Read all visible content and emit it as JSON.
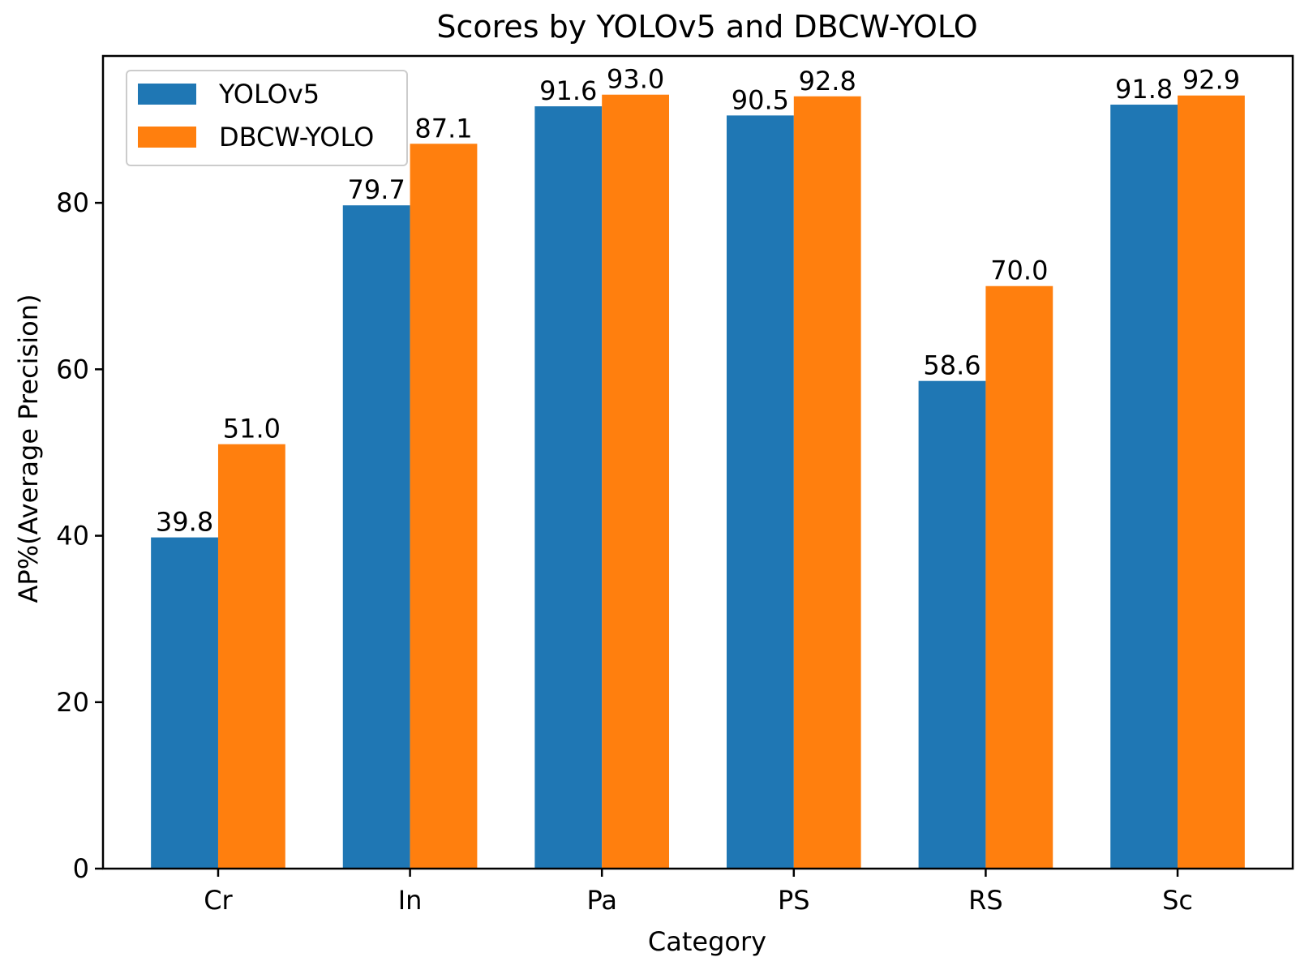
{
  "chart_data": {
    "type": "bar",
    "title": "Scores by YOLOv5 and DBCW-YOLO",
    "xlabel": "Category",
    "ylabel": "AP%(Average Precision)",
    "categories": [
      "Cr",
      "In",
      "Pa",
      "PS",
      "RS",
      "Sc"
    ],
    "series": [
      {
        "name": "YOLOv5",
        "color": "#1f77b4",
        "values": [
          39.8,
          79.7,
          91.6,
          90.5,
          58.6,
          91.8
        ],
        "labels": [
          "39.8",
          "79.7",
          "91.6",
          "90.5",
          "58.6",
          "91.8"
        ]
      },
      {
        "name": "DBCW-YOLO",
        "color": "#ff7f0e",
        "values": [
          51.0,
          87.1,
          93.0,
          92.8,
          70.0,
          92.9
        ],
        "labels": [
          "51.0",
          "87.1",
          "93.0",
          "92.8",
          "70.0",
          "92.9"
        ]
      }
    ],
    "ylim": [
      0,
      97.65
    ],
    "yticks": [
      0,
      20,
      40,
      60,
      80
    ],
    "grid": false,
    "legend_position": "top-left"
  }
}
